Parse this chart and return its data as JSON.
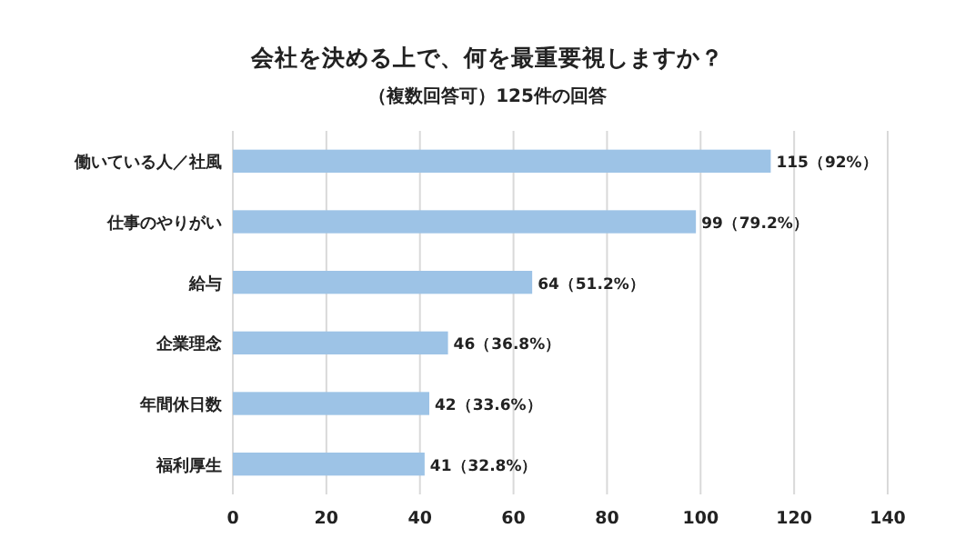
{
  "chart_data": {
    "type": "bar",
    "orientation": "horizontal",
    "title": "会社を決める上で、何を最重要視しますか？",
    "subtitle": "（複数回答可）125件の回答",
    "categories": [
      "働いている人／社風",
      "仕事のやりがい",
      "給与",
      "企業理念",
      "年間休日数",
      "福利厚生"
    ],
    "values": [
      115,
      99,
      64,
      46,
      42,
      41
    ],
    "value_labels": [
      "115（92%）",
      "99（79.2%）",
      "64（51.2%）",
      "46（36.8%）",
      "42（33.6%）",
      "41（32.8%）"
    ],
    "color": "#9dc3e6",
    "xlim": [
      0,
      140
    ],
    "xticks": [
      0,
      20,
      40,
      60,
      80,
      100,
      120,
      140
    ],
    "grid": "x"
  }
}
